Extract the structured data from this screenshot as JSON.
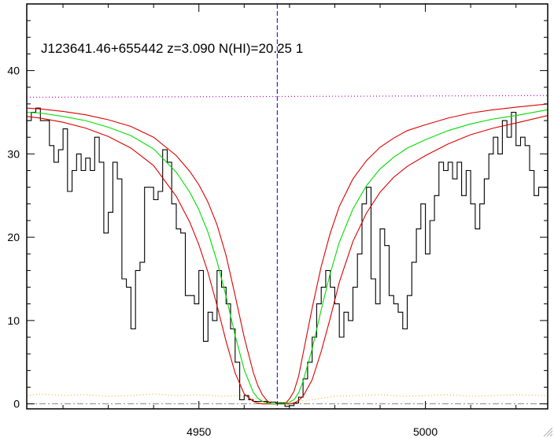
{
  "chart_data": {
    "type": "line",
    "title": "J123641.46+655442 z=3.090 N(HI)=20.25 1",
    "xlabel": "",
    "ylabel": "",
    "xlim": [
      4912,
      5027
    ],
    "ylim": [
      -0.6,
      48
    ],
    "x_ticks": [
      4950,
      5000
    ],
    "x_tick_labels": [
      "4950",
      "5000"
    ],
    "y_ticks": [
      0,
      10,
      20,
      30,
      40
    ],
    "y_tick_labels": [
      "0",
      "10",
      "20",
      "30",
      "40"
    ],
    "grid": false,
    "legend": "none",
    "absorber_center_x": 4967.3,
    "colors": {
      "flux": "#000000",
      "model": "#00dd00",
      "model_bounds": "#dd0000",
      "continuum": "#cc00cc",
      "error": "#ff9900",
      "zero_line": "#888888",
      "center_line": "#0000cc"
    },
    "flux_step_x": [
      4912,
      4913,
      4914,
      4915,
      4916,
      4917,
      4918,
      4919,
      4920,
      4921,
      4922,
      4923,
      4924,
      4925,
      4926,
      4927,
      4928,
      4929,
      4930,
      4931,
      4932,
      4933,
      4934,
      4935,
      4936,
      4937,
      4938,
      4939,
      4940,
      4941,
      4942,
      4943,
      4944,
      4945,
      4946,
      4947,
      4948,
      4949,
      4950,
      4951,
      4952,
      4953,
      4954,
      4955,
      4956,
      4957,
      4958,
      4959,
      4960,
      4961,
      4962,
      4963,
      4964,
      4965,
      4966,
      4967,
      4968,
      4969,
      4970,
      4971,
      4972,
      4973,
      4974,
      4975,
      4976,
      4977,
      4978,
      4979,
      4980,
      4981,
      4982,
      4983,
      4984,
      4985,
      4986,
      4987,
      4988,
      4989,
      4990,
      4991,
      4992,
      4993,
      4994,
      4995,
      4996,
      4997,
      4998,
      4999,
      5000,
      5001,
      5002,
      5003,
      5004,
      5005,
      5006,
      5007,
      5008,
      5009,
      5010,
      5011,
      5012,
      5013,
      5014,
      5015,
      5016,
      5017,
      5018,
      5019,
      5020,
      5021,
      5022,
      5023,
      5024,
      5025,
      5026
    ],
    "flux_values": [
      34,
      35,
      35.5,
      34,
      34,
      31,
      29,
      30.5,
      33,
      25.5,
      28,
      30,
      28,
      29.5,
      28,
      32,
      29,
      20.5,
      23,
      29,
      27,
      15,
      14,
      9,
      16,
      17,
      26,
      26,
      24.5,
      25.5,
      30.5,
      29,
      24,
      21,
      20.5,
      13,
      13,
      12,
      16,
      7.5,
      11,
      10,
      16,
      14,
      12,
      9,
      5,
      0.5,
      1,
      0.5,
      0.3,
      0.3,
      0.3,
      0.2,
      0.2,
      0.1,
      0.1,
      -0.3,
      -0.2,
      0.1,
      0.8,
      3,
      5,
      8,
      12,
      14,
      16,
      14,
      12,
      8,
      11,
      10,
      14,
      18,
      24,
      26,
      15,
      12,
      21,
      19,
      13,
      12,
      11,
      9,
      13,
      17,
      21,
      24,
      18,
      22,
      25,
      29,
      28,
      29,
      27,
      29,
      25,
      28,
      24,
      21,
      24,
      27,
      30,
      32,
      30,
      34,
      32,
      35,
      31,
      32,
      31,
      28,
      25,
      26,
      26,
      25,
      26
    ],
    "model_x": [
      4912,
      4915,
      4920,
      4925,
      4930,
      4935,
      4940,
      4945,
      4948,
      4950,
      4952,
      4954,
      4956,
      4958,
      4960,
      4962,
      4963,
      4964,
      4965,
      4966,
      4967,
      4968,
      4969,
      4970,
      4971,
      4972,
      4973,
      4975,
      4977,
      4979,
      4981,
      4984,
      4987,
      4990,
      4993,
      4996,
      5000,
      5005,
      5010,
      5015,
      5020,
      5027
    ],
    "model_values": [
      35,
      34.9,
      34.5,
      34,
      33.2,
      32.2,
      30.6,
      27.8,
      25.4,
      23.3,
      20.6,
      17.1,
      12.9,
      8.2,
      4.1,
      1.4,
      0.7,
      0.3,
      0.1,
      0,
      0,
      0,
      0,
      0.2,
      0.5,
      1.3,
      2.7,
      6.6,
      11.3,
      15.7,
      19.4,
      23.4,
      26.2,
      28.2,
      29.6,
      30.7,
      31.7,
      32.8,
      33.6,
      34.2,
      34.6,
      35.3
    ],
    "model_upper_values": [
      35.5,
      35.4,
      35.1,
      34.7,
      34.1,
      33.3,
      32,
      29.8,
      27.9,
      26.3,
      24.2,
      21.5,
      17.8,
      13,
      8,
      3.8,
      2.2,
      1.1,
      0.4,
      0,
      0,
      0,
      0,
      0.6,
      1.5,
      3.3,
      6,
      11.5,
      16.5,
      20.5,
      23.7,
      27,
      29.2,
      30.8,
      31.9,
      32.8,
      33.5,
      34.3,
      34.9,
      35.3,
      35.6,
      36
    ],
    "model_lower_values": [
      34.5,
      34.3,
      33.8,
      33.1,
      32.1,
      30.7,
      28.6,
      24.9,
      21.8,
      19.1,
      15.8,
      11.8,
      7.5,
      3.7,
      1.2,
      0.3,
      0.1,
      0,
      0,
      0,
      0,
      0,
      0,
      0,
      0.1,
      0.4,
      0.9,
      2.9,
      6.3,
      10.3,
      14.6,
      19.5,
      22.9,
      25.4,
      27.2,
      28.5,
      29.8,
      31.2,
      32.3,
      33.1,
      33.7,
      34.6
    ],
    "continuum_x": [
      4912,
      5027
    ],
    "continuum_values": [
      36.8,
      37
    ],
    "error_x": [
      4912,
      4915,
      4920,
      4925,
      4930,
      4935,
      4940,
      4945,
      4950,
      4955,
      4960,
      4965,
      4970,
      4975,
      4980,
      4985,
      4990,
      4995,
      5000,
      5005,
      5010,
      5015,
      5020,
      5025,
      5027
    ],
    "error_values": [
      1,
      1.2,
      1,
      1.1,
      0.9,
      1,
      1.2,
      1,
      1.1,
      0.9,
      1,
      0.3,
      0.2,
      0.5,
      0.9,
      1,
      1.1,
      0.9,
      1,
      1.1,
      0.9,
      1,
      1.1,
      1,
      1
    ]
  }
}
